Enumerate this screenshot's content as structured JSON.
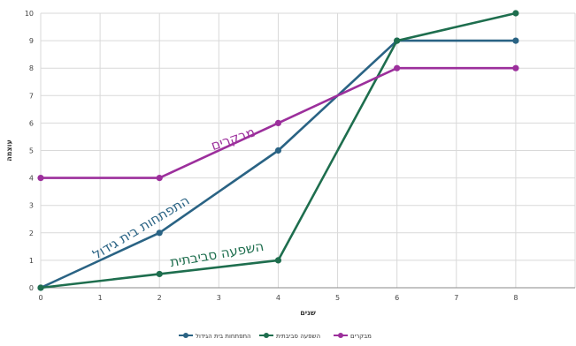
{
  "chart_data": {
    "type": "line",
    "x": [
      0,
      2,
      4,
      6,
      8
    ],
    "xlim": [
      0,
      9
    ],
    "ylim": [
      0,
      10
    ],
    "xticks": [
      "0",
      "1",
      "2",
      "3",
      "4",
      "5",
      "6",
      "7",
      "8"
    ],
    "yticks": [
      "0",
      "1",
      "2",
      "3",
      "4",
      "5",
      "6",
      "7",
      "8",
      "9",
      "10"
    ],
    "xlabel": "שנים",
    "ylabel": "עוצמה",
    "grid": true,
    "legend_position": "bottom",
    "series": [
      {
        "name": "התפתחות בית הגידול",
        "values": [
          0,
          2,
          5,
          9,
          9
        ],
        "color": "#2a6384"
      },
      {
        "name": "השפעה סביבתית",
        "values": [
          0,
          0.5,
          1,
          9,
          10
        ],
        "color": "#1e6e4e"
      },
      {
        "name": "מבקרים",
        "values": [
          4,
          4,
          6,
          8,
          8
        ],
        "color": "#9c2f9c"
      }
    ],
    "annotations": [
      {
        "text": "מבקרים",
        "color": "#9c2f9c"
      },
      {
        "text": "התפתחות בית גידול",
        "color": "#2a6384"
      },
      {
        "text": "השפעה סביבתית",
        "color": "#1e6e4e"
      }
    ]
  }
}
